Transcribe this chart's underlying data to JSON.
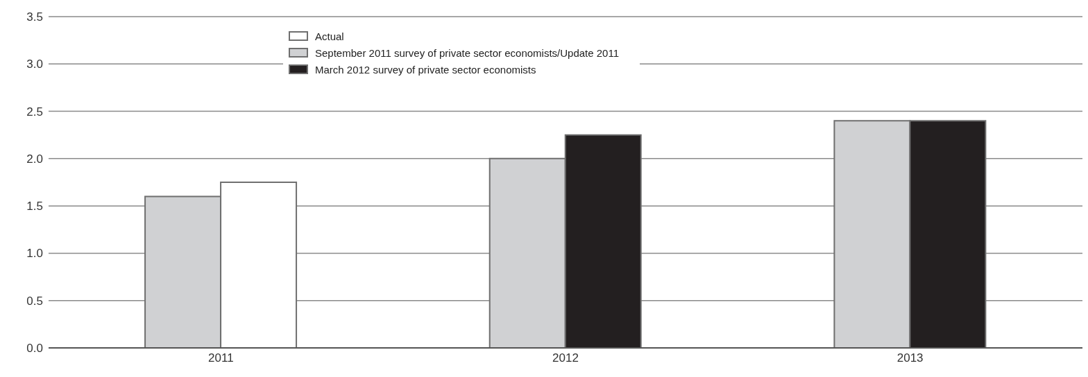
{
  "chart_data": {
    "type": "bar",
    "categories": [
      "2011",
      "2012",
      "2013"
    ],
    "series": [
      {
        "name": "Actual",
        "color": "#ffffff",
        "values": [
          1.75,
          null,
          null
        ]
      },
      {
        "name": "September 2011 survey of private sector economists/Update 2011",
        "color": "#d0d1d3",
        "values": [
          1.6,
          2.0,
          2.4
        ]
      },
      {
        "name": "March 2012 survey of private sector economists",
        "color": "#231f20",
        "values": [
          null,
          2.25,
          2.4
        ]
      }
    ],
    "ylim": [
      0,
      3.5
    ],
    "yticks": [
      {
        "value": 0,
        "label": "0.0"
      },
      {
        "value": 0.5,
        "label": "0.5"
      },
      {
        "value": 1,
        "label": "1.0"
      },
      {
        "value": 1.5,
        "label": "1.5"
      },
      {
        "value": 2,
        "label": "2.0"
      },
      {
        "value": 2.5,
        "label": "2.5"
      },
      {
        "value": 3,
        "label": "3.0"
      },
      {
        "value": 3.5,
        "label": "3.5"
      }
    ],
    "grid": "y",
    "legend": "top"
  }
}
